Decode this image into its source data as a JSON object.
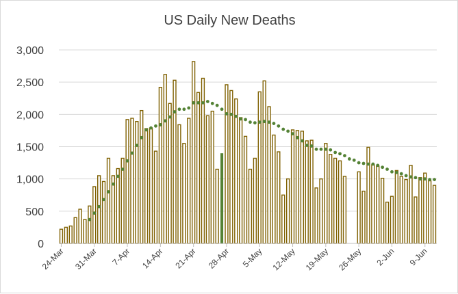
{
  "chart_data": {
    "type": "bar",
    "title": "US Daily New Deaths",
    "xlabel": "",
    "ylabel": "",
    "ylim": [
      0,
      3000
    ],
    "y_ticks": [
      0,
      500,
      1000,
      1500,
      2000,
      2500,
      3000
    ],
    "y_tick_labels": [
      "0",
      "500",
      "1,000",
      "1,500",
      "2,000",
      "2,500",
      "3,000"
    ],
    "x_tick_labels": [
      "24-Mar",
      "31-Mar",
      "7-Apr",
      "14-Apr",
      "21-Apr",
      "28-Apr",
      "5-May",
      "12-May",
      "19-May",
      "26-May",
      "2-Jun",
      "9-Jun"
    ],
    "x_tick_label_interval_days": 7,
    "grid": true,
    "colors": {
      "bar_fill": "#ffffff",
      "bar_border": "#7f6000",
      "highlight_bar": "#548235",
      "moving_average": "#548235",
      "gridline": "#d9d9d9",
      "axis": "#bfbfbf"
    },
    "categories": [
      "24-Mar",
      "25-Mar",
      "26-Mar",
      "27-Mar",
      "28-Mar",
      "29-Mar",
      "30-Mar",
      "31-Mar",
      "1-Apr",
      "2-Apr",
      "3-Apr",
      "4-Apr",
      "5-Apr",
      "6-Apr",
      "7-Apr",
      "8-Apr",
      "9-Apr",
      "10-Apr",
      "11-Apr",
      "12-Apr",
      "13-Apr",
      "14-Apr",
      "15-Apr",
      "16-Apr",
      "17-Apr",
      "18-Apr",
      "19-Apr",
      "20-Apr",
      "21-Apr",
      "22-Apr",
      "23-Apr",
      "24-Apr",
      "25-Apr",
      "26-Apr",
      "27-Apr",
      "28-Apr",
      "29-Apr",
      "30-Apr",
      "1-May",
      "2-May",
      "3-May",
      "4-May",
      "5-May",
      "6-May",
      "7-May",
      "8-May",
      "9-May",
      "10-May",
      "11-May",
      "12-May",
      "13-May",
      "14-May",
      "15-May",
      "16-May",
      "17-May",
      "18-May",
      "19-May",
      "20-May",
      "21-May",
      "22-May",
      "23-May",
      "24-May",
      "25-May",
      "26-May",
      "27-May",
      "28-May",
      "29-May",
      "30-May",
      "31-May",
      "1-Jun",
      "2-Jun",
      "3-Jun",
      "4-Jun",
      "5-Jun",
      "6-Jun",
      "7-Jun",
      "8-Jun",
      "9-Jun",
      "10-Jun",
      "11-Jun"
    ],
    "series": [
      {
        "type": "bar",
        "values": [
          220,
          250,
          270,
          400,
          530,
          370,
          580,
          880,
          1050,
          960,
          1320,
          1050,
          1160,
          1320,
          1920,
          1940,
          1890,
          2060,
          1780,
          1790,
          1430,
          2420,
          2620,
          2170,
          2530,
          1840,
          1550,
          1940,
          2820,
          2340,
          2560,
          1980,
          2050,
          1150,
          1390,
          2460,
          2370,
          2240,
          1950,
          1660,
          1150,
          1320,
          2350,
          2520,
          2120,
          1680,
          1420,
          750,
          1000,
          1760,
          1750,
          1740,
          1590,
          1600,
          860,
          1000,
          1550,
          1380,
          1320,
          1280,
          1040,
          0,
          0,
          1110,
          810,
          1490,
          1220,
          1200,
          1010,
          640,
          730,
          1130,
          1040,
          990,
          1210,
          720,
          1020,
          1090,
          970,
          900
        ]
      },
      {
        "type": "dotted-line",
        "values": [
          null,
          null,
          null,
          null,
          null,
          null,
          370,
          470,
          570,
          680,
          800,
          920,
          1040,
          1150,
          1280,
          1400,
          1520,
          1640,
          1760,
          1790,
          1820,
          1840,
          1900,
          1960,
          2040,
          2080,
          2080,
          2100,
          2180,
          2180,
          2180,
          2200,
          2170,
          2140,
          2080,
          2010,
          2000,
          1970,
          1930,
          1920,
          1880,
          1870,
          1880,
          1890,
          1880,
          1860,
          1820,
          1770,
          1740,
          1700,
          1640,
          1590,
          1520,
          1510,
          1460,
          1460,
          1460,
          1450,
          1410,
          1390,
          1360,
          1310,
          1290,
          1250,
          1240,
          1230,
          1230,
          1210,
          1180,
          1150,
          1110,
          1100,
          1080,
          1050,
          1030,
          1020,
          1000,
          1000,
          990,
          990
        ]
      }
    ],
    "highlighted_index": 34
  }
}
